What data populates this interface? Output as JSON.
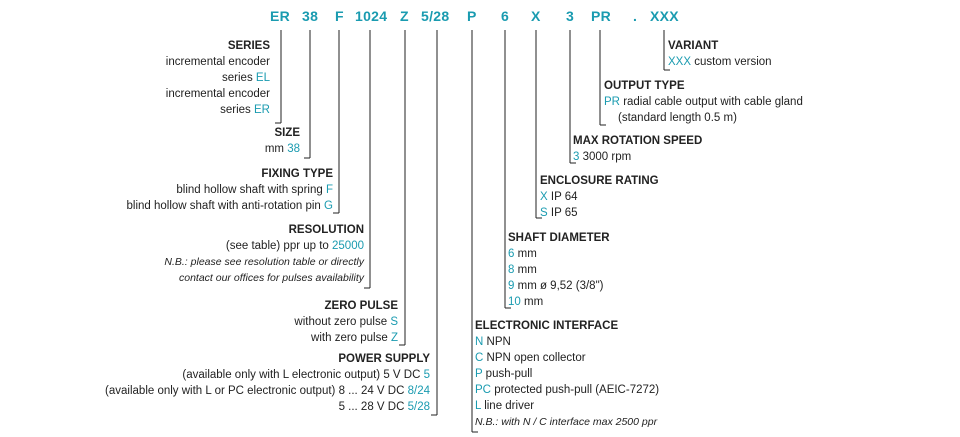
{
  "code_segments": [
    "ER",
    "38",
    "F",
    "1024",
    "Z",
    "5/28",
    "P",
    "6",
    "X",
    "3",
    "PR",
    ".",
    "XXX"
  ],
  "series": {
    "title": "SERIES",
    "line1": "incremental encoder",
    "line2_prefix": "series",
    "line2_code": "EL",
    "line3": "incremental encoder",
    "line4_prefix": "series",
    "line4_code": "ER"
  },
  "size": {
    "title": "SIZE",
    "prefix": "mm",
    "code": "38"
  },
  "fixing": {
    "title": "FIXING TYPE",
    "opt1_text": "blind hollow shaft with spring",
    "opt1_code": "F",
    "opt2_text": "blind hollow shaft with anti-rotation pin",
    "opt2_code": "G"
  },
  "resolution": {
    "title": "RESOLUTION",
    "text": "(see table) ppr up to",
    "code": "25000",
    "note1": "N.B.: please see resolution table or directly",
    "note2": "contact our offices for pulses availability"
  },
  "zero_pulse": {
    "title": "ZERO PULSE",
    "opt1_text": "without zero pulse",
    "opt1_code": "S",
    "opt2_text": "with zero pulse",
    "opt2_code": "Z"
  },
  "power": {
    "title": "POWER SUPPLY",
    "opt1_text": "(available only with L electronic output) 5 V DC",
    "opt1_code": "5",
    "opt2_text": "(available only with L or PC electronic output) 8 ... 24 V DC",
    "opt2_code": "8/24",
    "opt3_text": "5 ... 28 V DC",
    "opt3_code": "5/28"
  },
  "variant": {
    "title": "VARIANT",
    "code": "XXX",
    "text": "custom version"
  },
  "output": {
    "title": "OUTPUT TYPE",
    "code": "PR",
    "text": "radial cable output with cable gland",
    "text2": "(standard length 0.5 m)"
  },
  "speed": {
    "title": "MAX ROTATION SPEED",
    "code": "3",
    "text": "3000 rpm"
  },
  "enclosure": {
    "title": "ENCLOSURE RATING",
    "opt1_code": "X",
    "opt1_text": "IP 64",
    "opt2_code": "S",
    "opt2_text": "IP 65"
  },
  "shaft": {
    "title": "SHAFT DIAMETER",
    "opt1_code": "6",
    "opt1_text": "mm",
    "opt2_code": "8",
    "opt2_text": "mm",
    "opt3_code": "9",
    "opt3_text": "mm ø 9,52 (3/8\")",
    "opt4_code": "10",
    "opt4_text": "mm"
  },
  "interface": {
    "title": "ELECTRONIC INTERFACE",
    "opt1_code": "N",
    "opt1_text": "NPN",
    "opt2_code": "C",
    "opt2_text": "NPN open collector",
    "opt3_code": "P",
    "opt3_text": "push-pull",
    "opt4_code": "PC",
    "opt4_text": "protected push-pull (AEIC-7272)",
    "opt5_code": "L",
    "opt5_text": "line driver",
    "note": "N.B.: with N / C interface max 2500 ppr"
  },
  "colors": {
    "accent": "#1a9bb0",
    "text": "#222222",
    "background": "#ffffff"
  }
}
